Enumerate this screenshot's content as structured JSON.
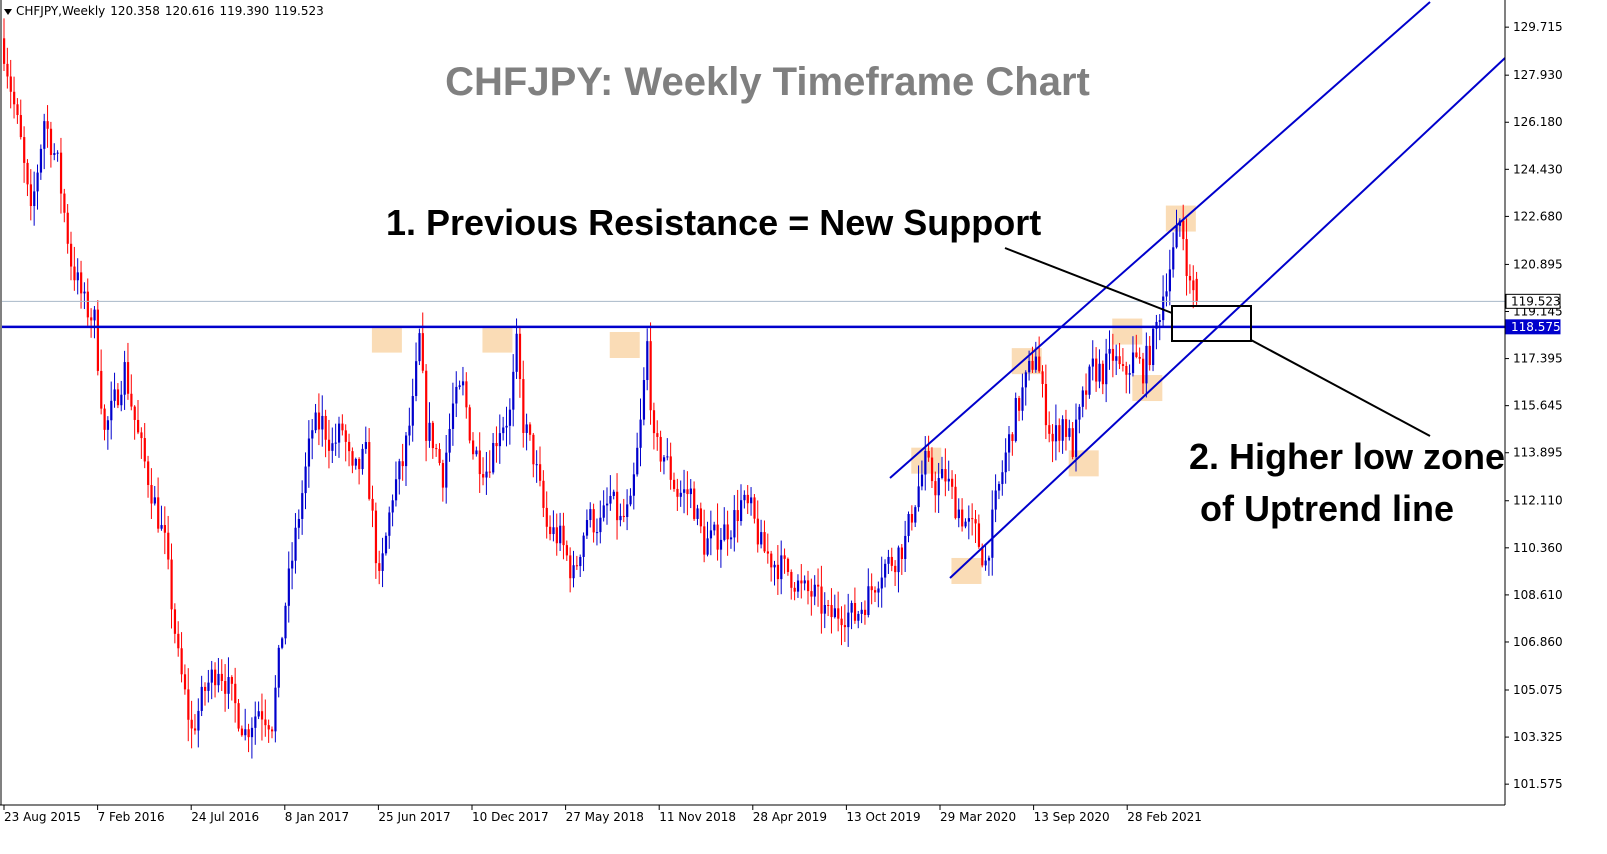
{
  "info": {
    "symbol": "CHFJPY,Weekly",
    "open": "120.358",
    "high": "120.616",
    "low": "119.390",
    "close": "119.523"
  },
  "chart_data": {
    "type": "candlestick",
    "title": "CHFJPY: Weekly Timeframe Chart",
    "ylim": [
      100.8,
      130.65
    ],
    "y_ticks": [
      "129.715",
      "127.930",
      "126.180",
      "124.430",
      "122.680",
      "120.895",
      "119.145",
      "117.395",
      "115.645",
      "113.895",
      "112.110",
      "110.360",
      "108.610",
      "106.860",
      "105.075",
      "103.325",
      "101.575"
    ],
    "x_ticks": [
      "23 Aug 2015",
      "7 Feb 2016",
      "24 Jul 2016",
      "8 Jan 2017",
      "25 Jun 2017",
      "10 Dec 2017",
      "27 May 2018",
      "11 Nov 2018",
      "28 Apr 2019",
      "13 Oct 2019",
      "29 Mar 2020",
      "13 Sep 2020",
      "28 Feb 2021"
    ],
    "bull_color": "#0000cc",
    "bear_color": "#ff0000",
    "current_price": {
      "value": 119.523,
      "label": "119.523",
      "color": "#a8b8c8"
    },
    "support_line": {
      "value": 118.575,
      "label": "118.575",
      "color": "#0000cc"
    },
    "anchors": [
      [
        0,
        128.9
      ],
      [
        5,
        125.4
      ],
      [
        8,
        122.6
      ],
      [
        12,
        126.3
      ],
      [
        16,
        124.6
      ],
      [
        20,
        121.0
      ],
      [
        24,
        119.4
      ],
      [
        27,
        118.8
      ],
      [
        30,
        114.6
      ],
      [
        36,
        117.0
      ],
      [
        40,
        114.5
      ],
      [
        44,
        112.5
      ],
      [
        48,
        110.5
      ],
      [
        52,
        106.2
      ],
      [
        56,
        103.5
      ],
      [
        60,
        105.1
      ],
      [
        64,
        106.0
      ],
      [
        68,
        104.8
      ],
      [
        72,
        103.5
      ],
      [
        76,
        104.4
      ],
      [
        80,
        103.9
      ],
      [
        84,
        108.3
      ],
      [
        88,
        111.6
      ],
      [
        92,
        114.8
      ],
      [
        95,
        115.0
      ],
      [
        98,
        114.1
      ],
      [
        101,
        114.8
      ],
      [
        104,
        113.0
      ],
      [
        108,
        113.8
      ],
      [
        112,
        109.0
      ],
      [
        116,
        112.4
      ],
      [
        119,
        113.5
      ],
      [
        122,
        115.6
      ],
      [
        124,
        118.1
      ],
      [
        126,
        114.8
      ],
      [
        128,
        114.4
      ],
      [
        131,
        113.1
      ],
      [
        134,
        115.6
      ],
      [
        137,
        116.3
      ],
      [
        140,
        114.0
      ],
      [
        144,
        113.3
      ],
      [
        148,
        114.9
      ],
      [
        151,
        115.3
      ],
      [
        153,
        117.8
      ],
      [
        155,
        115.0
      ],
      [
        158,
        113.8
      ],
      [
        162,
        111.1
      ],
      [
        166,
        110.7
      ],
      [
        170,
        109.3
      ],
      [
        174,
        111.5
      ],
      [
        178,
        111.2
      ],
      [
        181,
        112.2
      ],
      [
        184,
        111.3
      ],
      [
        187,
        111.8
      ],
      [
        190,
        114.9
      ],
      [
        192,
        117.9
      ],
      [
        194,
        114.1
      ],
      [
        197,
        113.8
      ],
      [
        201,
        112.4
      ],
      [
        205,
        112.4
      ],
      [
        209,
        110.5
      ],
      [
        213,
        110.8
      ],
      [
        217,
        111.2
      ],
      [
        220,
        112.0
      ],
      [
        223,
        111.7
      ],
      [
        226,
        110.4
      ],
      [
        230,
        109.8
      ],
      [
        234,
        109.5
      ],
      [
        238,
        108.8
      ],
      [
        242,
        108.6
      ],
      [
        246,
        107.8
      ],
      [
        250,
        108.0
      ],
      [
        254,
        107.8
      ],
      [
        258,
        108.6
      ],
      [
        262,
        109.6
      ],
      [
        266,
        110.0
      ],
      [
        269,
        110.6
      ],
      [
        272,
        112.2
      ],
      [
        275,
        113.5
      ],
      [
        278,
        112.7
      ],
      [
        281,
        113.0
      ],
      [
        284,
        112.0
      ],
      [
        287,
        111.3
      ],
      [
        290,
        110.9
      ],
      [
        293,
        109.8
      ],
      [
        296,
        112.0
      ],
      [
        299,
        113.8
      ],
      [
        302,
        115.4
      ],
      [
        305,
        116.5
      ],
      [
        308,
        117.7
      ],
      [
        310,
        116.0
      ],
      [
        313,
        114.3
      ],
      [
        316,
        115.1
      ],
      [
        319,
        114.1
      ],
      [
        322,
        115.8
      ],
      [
        325,
        117.0
      ],
      [
        328,
        116.9
      ],
      [
        331,
        117.5
      ],
      [
        334,
        116.7
      ],
      [
        337,
        117.4
      ],
      [
        340,
        117.0
      ],
      [
        343,
        118.0
      ],
      [
        345,
        119.2
      ],
      [
        347,
        120.4
      ],
      [
        349,
        121.3
      ],
      [
        351,
        122.5
      ],
      [
        352,
        122.0
      ],
      [
        354,
        120.0
      ],
      [
        356,
        119.8
      ]
    ]
  }
}
